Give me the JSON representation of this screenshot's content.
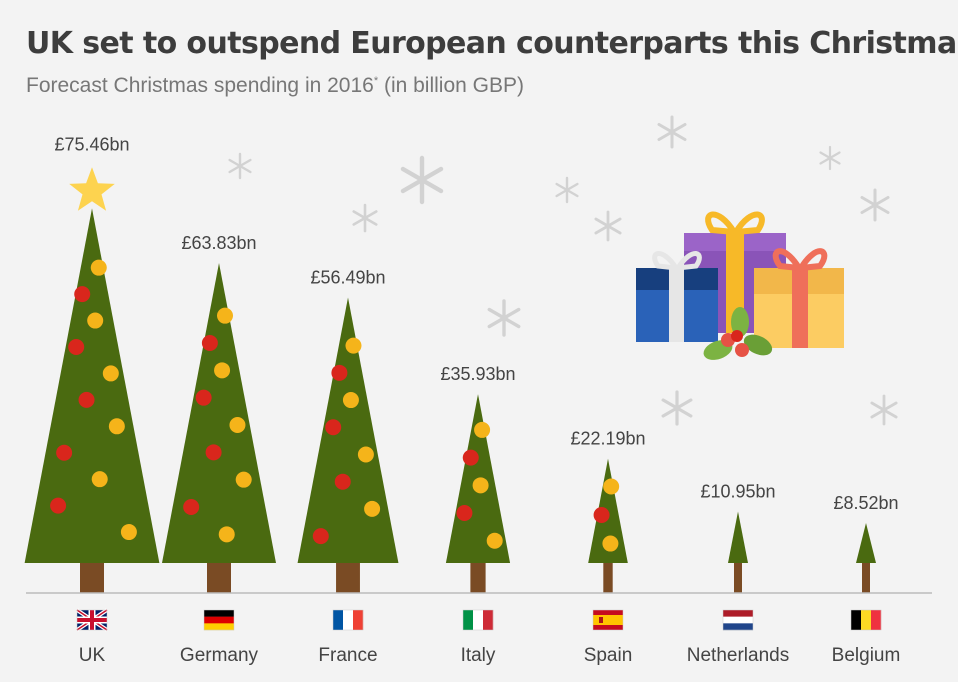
{
  "title": "UK set to outspend European counterparts this Christmas",
  "subtitle": {
    "text": "Forecast Christmas spending in 2016",
    "asterisk": "*",
    "unit": " (in billion GBP)"
  },
  "chart_data": {
    "type": "bar",
    "title": "UK set to outspend European counterparts this Christmas",
    "subtitle": "Forecast Christmas spending in 2016* (in billion GBP)",
    "categories": [
      "UK",
      "Germany",
      "France",
      "Italy",
      "Spain",
      "Netherlands",
      "Belgium"
    ],
    "values": [
      75.46,
      63.83,
      56.49,
      35.93,
      22.19,
      10.95,
      8.52
    ],
    "value_labels": [
      "£75.46bn",
      "£63.83bn",
      "£56.49bn",
      "£35.93bn",
      "£22.19bn",
      "£10.95bn",
      "£8.52bn"
    ],
    "ylabel": "",
    "xlabel": "",
    "grid": false,
    "legend": "none",
    "mark": "christmas-tree",
    "colors": {
      "tree": "#4a6a10",
      "trunk": "#7a4b24",
      "star": "#fdd34f",
      "bauble_red": "#d9261c",
      "bauble_yellow": "#f5b41a",
      "baseline": "#bbbbbb"
    },
    "flags": [
      "uk-flag-icon",
      "germany-flag-icon",
      "france-flag-icon",
      "italy-flag-icon",
      "spain-flag-icon",
      "netherlands-flag-icon",
      "belgium-flag-icon"
    ]
  },
  "decorations": [
    "gift-boxes-icon",
    "holly-icon",
    "snowflake-icon"
  ]
}
